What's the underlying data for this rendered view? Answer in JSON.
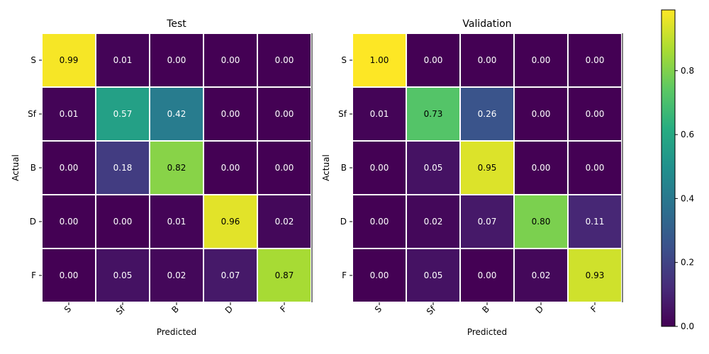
{
  "chart_data": [
    {
      "type": "heatmap",
      "title": "Test",
      "xlabel": "Predicted",
      "ylabel": "Actual",
      "x_categories": [
        "S",
        "Sf",
        "B",
        "D",
        "F"
      ],
      "y_categories": [
        "S",
        "Sf",
        "B",
        "D",
        "F"
      ],
      "values": [
        [
          0.99,
          0.01,
          0.0,
          0.0,
          0.0
        ],
        [
          0.01,
          0.57,
          0.42,
          0.0,
          0.0
        ],
        [
          0.0,
          0.18,
          0.82,
          0.0,
          0.0
        ],
        [
          0.0,
          0.0,
          0.01,
          0.96,
          0.02
        ],
        [
          0.0,
          0.05,
          0.02,
          0.07,
          0.87
        ]
      ]
    },
    {
      "type": "heatmap",
      "title": "Validation",
      "xlabel": "Predicted",
      "ylabel": "Actual",
      "x_categories": [
        "S",
        "Sf",
        "B",
        "D",
        "F"
      ],
      "y_categories": [
        "S",
        "Sf",
        "B",
        "D",
        "F"
      ],
      "values": [
        [
          1.0,
          0.0,
          0.0,
          0.0,
          0.0
        ],
        [
          0.01,
          0.73,
          0.26,
          0.0,
          0.0
        ],
        [
          0.0,
          0.05,
          0.95,
          0.0,
          0.0
        ],
        [
          0.0,
          0.02,
          0.07,
          0.8,
          0.11
        ],
        [
          0.0,
          0.05,
          0.0,
          0.02,
          0.93
        ]
      ]
    }
  ],
  "colorbar": {
    "colormap": "viridis",
    "range": [
      0.0,
      1.0
    ],
    "ticks": [
      0.0,
      0.2,
      0.4,
      0.6,
      0.8
    ],
    "tick_labels": [
      "0.0",
      "0.2",
      "0.4",
      "0.6",
      "0.8"
    ]
  }
}
